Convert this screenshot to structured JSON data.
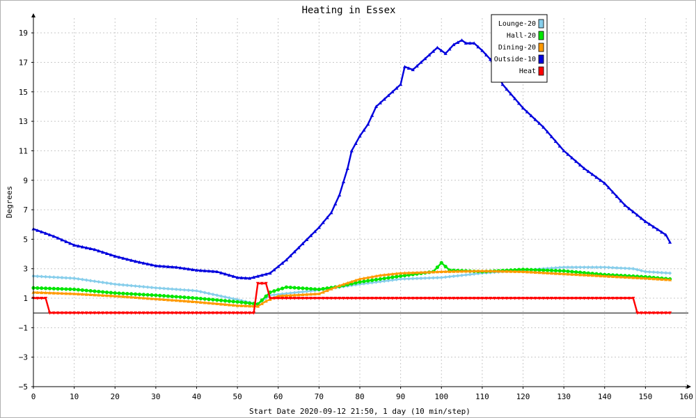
{
  "chart_data": {
    "type": "line",
    "title": "Heating in Essex",
    "xlabel": "Start Date 2020-09-12 21:50, 1 day (10 min/step)",
    "ylabel": "Degrees",
    "xlim": [
      0,
      160
    ],
    "ylim": [
      -5,
      20
    ],
    "xticks": [
      0,
      10,
      20,
      30,
      40,
      50,
      60,
      70,
      80,
      90,
      100,
      110,
      120,
      130,
      140,
      150,
      160
    ],
    "yticks": [
      -5,
      -3,
      -1,
      1,
      3,
      5,
      7,
      9,
      11,
      13,
      15,
      17,
      19
    ],
    "zero_line": 0,
    "grid": true,
    "legend_position": "top-right",
    "series": [
      {
        "name": "Lounge-20",
        "color": "#87ceeb",
        "marker": "diamond",
        "points": [
          [
            0,
            2.5
          ],
          [
            10,
            2.35
          ],
          [
            20,
            1.95
          ],
          [
            30,
            1.7
          ],
          [
            40,
            1.5
          ],
          [
            50,
            0.9
          ],
          [
            55,
            0.6
          ],
          [
            58,
            1.2
          ],
          [
            70,
            1.55
          ],
          [
            80,
            1.95
          ],
          [
            90,
            2.3
          ],
          [
            100,
            2.4
          ],
          [
            110,
            2.7
          ],
          [
            120,
            2.9
          ],
          [
            130,
            3.1
          ],
          [
            140,
            3.1
          ],
          [
            147,
            3.0
          ],
          [
            150,
            2.8
          ],
          [
            156,
            2.7
          ]
        ]
      },
      {
        "name": "Hall-20",
        "color": "#00e600",
        "marker": "circle",
        "points": [
          [
            0,
            1.7
          ],
          [
            10,
            1.6
          ],
          [
            20,
            1.35
          ],
          [
            30,
            1.2
          ],
          [
            40,
            1.0
          ],
          [
            50,
            0.75
          ],
          [
            55,
            0.6
          ],
          [
            58,
            1.4
          ],
          [
            62,
            1.75
          ],
          [
            70,
            1.6
          ],
          [
            75,
            1.8
          ],
          [
            80,
            2.1
          ],
          [
            90,
            2.5
          ],
          [
            98,
            2.8
          ],
          [
            100,
            3.4
          ],
          [
            102,
            2.9
          ],
          [
            110,
            2.8
          ],
          [
            120,
            2.95
          ],
          [
            130,
            2.85
          ],
          [
            140,
            2.6
          ],
          [
            150,
            2.45
          ],
          [
            156,
            2.3
          ]
        ]
      },
      {
        "name": "Dining-20",
        "color": "#ff9900",
        "marker": "triangle",
        "points": [
          [
            0,
            1.4
          ],
          [
            10,
            1.3
          ],
          [
            20,
            1.15
          ],
          [
            30,
            0.95
          ],
          [
            40,
            0.75
          ],
          [
            50,
            0.5
          ],
          [
            55,
            0.45
          ],
          [
            57,
            0.8
          ],
          [
            60,
            1.15
          ],
          [
            70,
            1.3
          ],
          [
            75,
            1.85
          ],
          [
            80,
            2.3
          ],
          [
            85,
            2.55
          ],
          [
            90,
            2.7
          ],
          [
            100,
            2.8
          ],
          [
            110,
            2.85
          ],
          [
            120,
            2.8
          ],
          [
            130,
            2.65
          ],
          [
            140,
            2.5
          ],
          [
            150,
            2.35
          ],
          [
            156,
            2.25
          ]
        ]
      },
      {
        "name": "Outside-10",
        "color": "#0000dd",
        "marker": "triangle",
        "points": [
          [
            0,
            5.7
          ],
          [
            5,
            5.2
          ],
          [
            10,
            4.6
          ],
          [
            15,
            4.3
          ],
          [
            20,
            3.85
          ],
          [
            25,
            3.5
          ],
          [
            30,
            3.2
          ],
          [
            35,
            3.1
          ],
          [
            40,
            2.9
          ],
          [
            45,
            2.8
          ],
          [
            50,
            2.4
          ],
          [
            53,
            2.35
          ],
          [
            58,
            2.7
          ],
          [
            62,
            3.6
          ],
          [
            66,
            4.7
          ],
          [
            70,
            5.8
          ],
          [
            73,
            6.8
          ],
          [
            75,
            8.0
          ],
          [
            77,
            9.8
          ],
          [
            78,
            11.0
          ],
          [
            80,
            12.0
          ],
          [
            82,
            12.8
          ],
          [
            84,
            14.0
          ],
          [
            86,
            14.5
          ],
          [
            88,
            15.0
          ],
          [
            90,
            15.5
          ],
          [
            91,
            16.7
          ],
          [
            93,
            16.5
          ],
          [
            95,
            17.0
          ],
          [
            97,
            17.5
          ],
          [
            99,
            18.0
          ],
          [
            101,
            17.6
          ],
          [
            103,
            18.2
          ],
          [
            105,
            18.5
          ],
          [
            106,
            18.3
          ],
          [
            108,
            18.3
          ],
          [
            110,
            17.8
          ],
          [
            112,
            17.2
          ],
          [
            115,
            15.5
          ],
          [
            120,
            13.9
          ],
          [
            125,
            12.6
          ],
          [
            130,
            11.0
          ],
          [
            135,
            9.8
          ],
          [
            140,
            8.8
          ],
          [
            145,
            7.3
          ],
          [
            150,
            6.2
          ],
          [
            155,
            5.3
          ],
          [
            156,
            4.8
          ]
        ]
      },
      {
        "name": "Heat",
        "color": "#ff0000",
        "marker": "triangle-down",
        "points": [
          [
            0,
            1
          ],
          [
            3,
            1
          ],
          [
            4,
            0
          ],
          [
            54,
            0
          ],
          [
            55,
            2
          ],
          [
            57,
            2
          ],
          [
            58,
            1
          ],
          [
            147,
            1
          ],
          [
            148,
            0
          ],
          [
            156,
            0
          ]
        ]
      }
    ]
  }
}
